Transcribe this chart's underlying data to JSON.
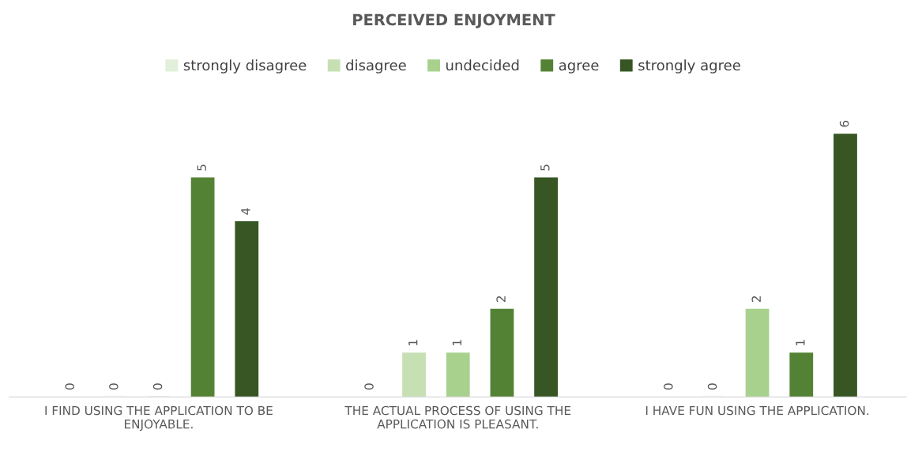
{
  "chart_data": {
    "type": "bar",
    "title": "PERCEIVED ENJOYMENT",
    "categories": [
      "I FIND USING THE APPLICATION TO BE ENJOYABLE.",
      "THE ACTUAL PROCESS OF USING THE APPLICATION IS PLEASANT.",
      "I HAVE FUN USING THE APPLICATION."
    ],
    "series": [
      {
        "name": "strongly disagree",
        "color": "#e2efda",
        "values": [
          0,
          0,
          0
        ]
      },
      {
        "name": "disagree",
        "color": "#c6e0b4",
        "values": [
          0,
          1,
          0
        ]
      },
      {
        "name": "undecided",
        "color": "#a9d18e",
        "values": [
          0,
          1,
          2
        ]
      },
      {
        "name": "agree",
        "color": "#548235",
        "values": [
          5,
          2,
          1
        ]
      },
      {
        "name": "strongly agree",
        "color": "#375623",
        "values": [
          4,
          5,
          6
        ]
      }
    ],
    "data_labels": true,
    "legend": "top",
    "grid": false,
    "tick_labels": "x"
  }
}
